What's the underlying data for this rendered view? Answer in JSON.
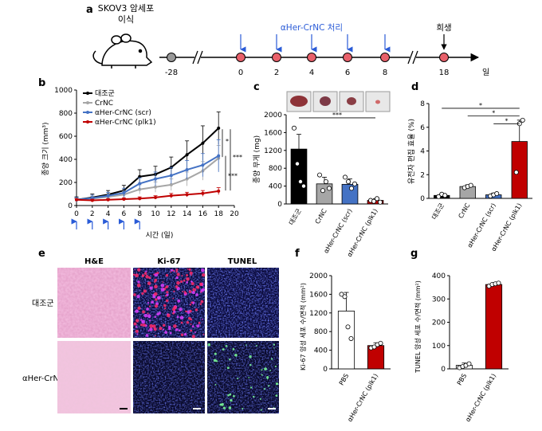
{
  "colors": {
    "black": "#000000",
    "gray": "#a6a6a6",
    "blue": "#4472c4",
    "red": "#c00000",
    "dot": "#e8606a",
    "timeline_gray": "#999999"
  },
  "panel_a": {
    "label": "a",
    "cell_label_line1": "SKOV3 암세포",
    "cell_label_line2": "이식",
    "treatment_label": "αHer-CrNC 처리",
    "sacrifice_label": "희생",
    "unit": "일",
    "ticks": [
      "-28",
      "0",
      "2",
      "4",
      "6",
      "8",
      "18"
    ],
    "icon": "mouse-icon"
  },
  "panel_b": {
    "label": "b",
    "chart_data": {
      "type": "line",
      "xlabel": "시간 (일)",
      "ylabel": "종양 크기 (mm³)",
      "xlim": [
        0,
        20
      ],
      "ylim": [
        0,
        1000
      ],
      "xticks": [
        "0",
        "2",
        "4",
        "6",
        "8",
        "10",
        "12",
        "14",
        "16",
        "18",
        "20"
      ],
      "yticks": [
        "0",
        "200",
        "400",
        "600",
        "800",
        "1000"
      ],
      "x": [
        0,
        2,
        4,
        6,
        8,
        10,
        12,
        14,
        16,
        18
      ],
      "series": [
        {
          "name": "대조군",
          "color": "#000000",
          "values": [
            50,
            70,
            95,
            130,
            250,
            270,
            330,
            440,
            540,
            670
          ],
          "err": [
            25,
            30,
            35,
            45,
            60,
            70,
            90,
            120,
            150,
            140
          ]
        },
        {
          "name": "CrNC",
          "color": "#a6a6a6",
          "values": [
            48,
            60,
            75,
            95,
            140,
            160,
            180,
            230,
            300,
            410
          ],
          "err": [
            15,
            20,
            25,
            30,
            40,
            45,
            50,
            60,
            80,
            110
          ]
        },
        {
          "name": "αHer-CrNC (scr)",
          "color": "#4472c4",
          "values": [
            50,
            65,
            85,
            110,
            190,
            230,
            260,
            310,
            350,
            430
          ],
          "err": [
            20,
            25,
            30,
            40,
            50,
            60,
            70,
            80,
            100,
            140
          ]
        },
        {
          "name": "αHer-CrNC (plk1)",
          "color": "#c00000",
          "values": [
            50,
            45,
            50,
            55,
            60,
            70,
            85,
            95,
            105,
            125
          ],
          "err": [
            10,
            10,
            10,
            12,
            15,
            15,
            20,
            20,
            25,
            30
          ]
        }
      ],
      "significance": [
        "*",
        "***",
        "***"
      ],
      "injection_days": [
        0,
        2,
        4,
        6,
        8
      ]
    }
  },
  "panel_c": {
    "label": "c",
    "chart_data": {
      "type": "bar",
      "ylabel": "종양 무게 (mg)",
      "ylim": [
        0,
        2000
      ],
      "yticks": [
        "0",
        "400",
        "800",
        "1200",
        "1600",
        "2000"
      ],
      "categories": [
        "대조군",
        "CrNC",
        "αHer-CrNC (scr)",
        "αHer-CrNC (plk1)"
      ],
      "values": [
        1230,
        450,
        440,
        80
      ],
      "err": [
        330,
        150,
        120,
        40
      ],
      "colors": [
        "#000000",
        "#a6a6a6",
        "#4472c4",
        "#c00000"
      ],
      "points": [
        [
          1700,
          900,
          500,
          400
        ],
        [
          650,
          300,
          500,
          350
        ],
        [
          600,
          500,
          350,
          450
        ],
        [
          80,
          60,
          120,
          40
        ]
      ],
      "significance": "***"
    }
  },
  "panel_d": {
    "label": "d",
    "chart_data": {
      "type": "bar",
      "ylabel": "유전자 편집 효율 (%)",
      "ylim": [
        0,
        8
      ],
      "yticks": [
        "0",
        "2",
        "4",
        "6",
        "8"
      ],
      "categories": [
        "대조군",
        "CrNC",
        "αHer-CrNC (scr)",
        "αHer-CrNC (plk1)"
      ],
      "values": [
        0.25,
        1.0,
        0.3,
        4.8
      ],
      "err": [
        0.15,
        0.15,
        0.15,
        1.8
      ],
      "colors": [
        "#000000",
        "#a6a6a6",
        "#4472c4",
        "#c00000"
      ],
      "points": [
        [
          0.15,
          0.35,
          0.25
        ],
        [
          0.9,
          1.0,
          1.1
        ],
        [
          0.2,
          0.3,
          0.4
        ],
        [
          2.2,
          6.3,
          6.6
        ]
      ],
      "significance": [
        "*",
        "*",
        "*"
      ]
    }
  },
  "panel_e": {
    "label": "e",
    "columns": [
      "H&E",
      "Ki-67",
      "TUNEL"
    ],
    "rows": [
      "대조군",
      "αHer-CrNC"
    ]
  },
  "panel_f": {
    "label": "f",
    "chart_data": {
      "type": "bar",
      "ylabel": "Ki-67 양성 세포 수/면적 (mm²)",
      "ylim": [
        0,
        2000
      ],
      "yticks": [
        "0",
        "400",
        "800",
        "1200",
        "1600",
        "2000"
      ],
      "categories": [
        "PBS",
        "αHer-CrNC (plk1)"
      ],
      "values": [
        1240,
        500
      ],
      "err": [
        400,
        60
      ],
      "colors": [
        "#ffffff",
        "#c00000"
      ],
      "points": [
        [
          1600,
          1550,
          900,
          650
        ],
        [
          450,
          470,
          520,
          550
        ]
      ]
    }
  },
  "panel_g": {
    "label": "g",
    "chart_data": {
      "type": "bar",
      "ylabel": "TUNEL 양성 세포 수/면적 (mm²)",
      "ylim": [
        0,
        400
      ],
      "yticks": [
        "0",
        "100",
        "200",
        "300",
        "400"
      ],
      "categories": [
        "PBS",
        "αHer-CrNC (plk1)"
      ],
      "values": [
        15,
        362
      ],
      "err": [
        10,
        8
      ],
      "colors": [
        "#ffffff",
        "#c00000"
      ],
      "points": [
        [
          5,
          10,
          15,
          22
        ],
        [
          355,
          362,
          365,
          368
        ]
      ]
    }
  }
}
